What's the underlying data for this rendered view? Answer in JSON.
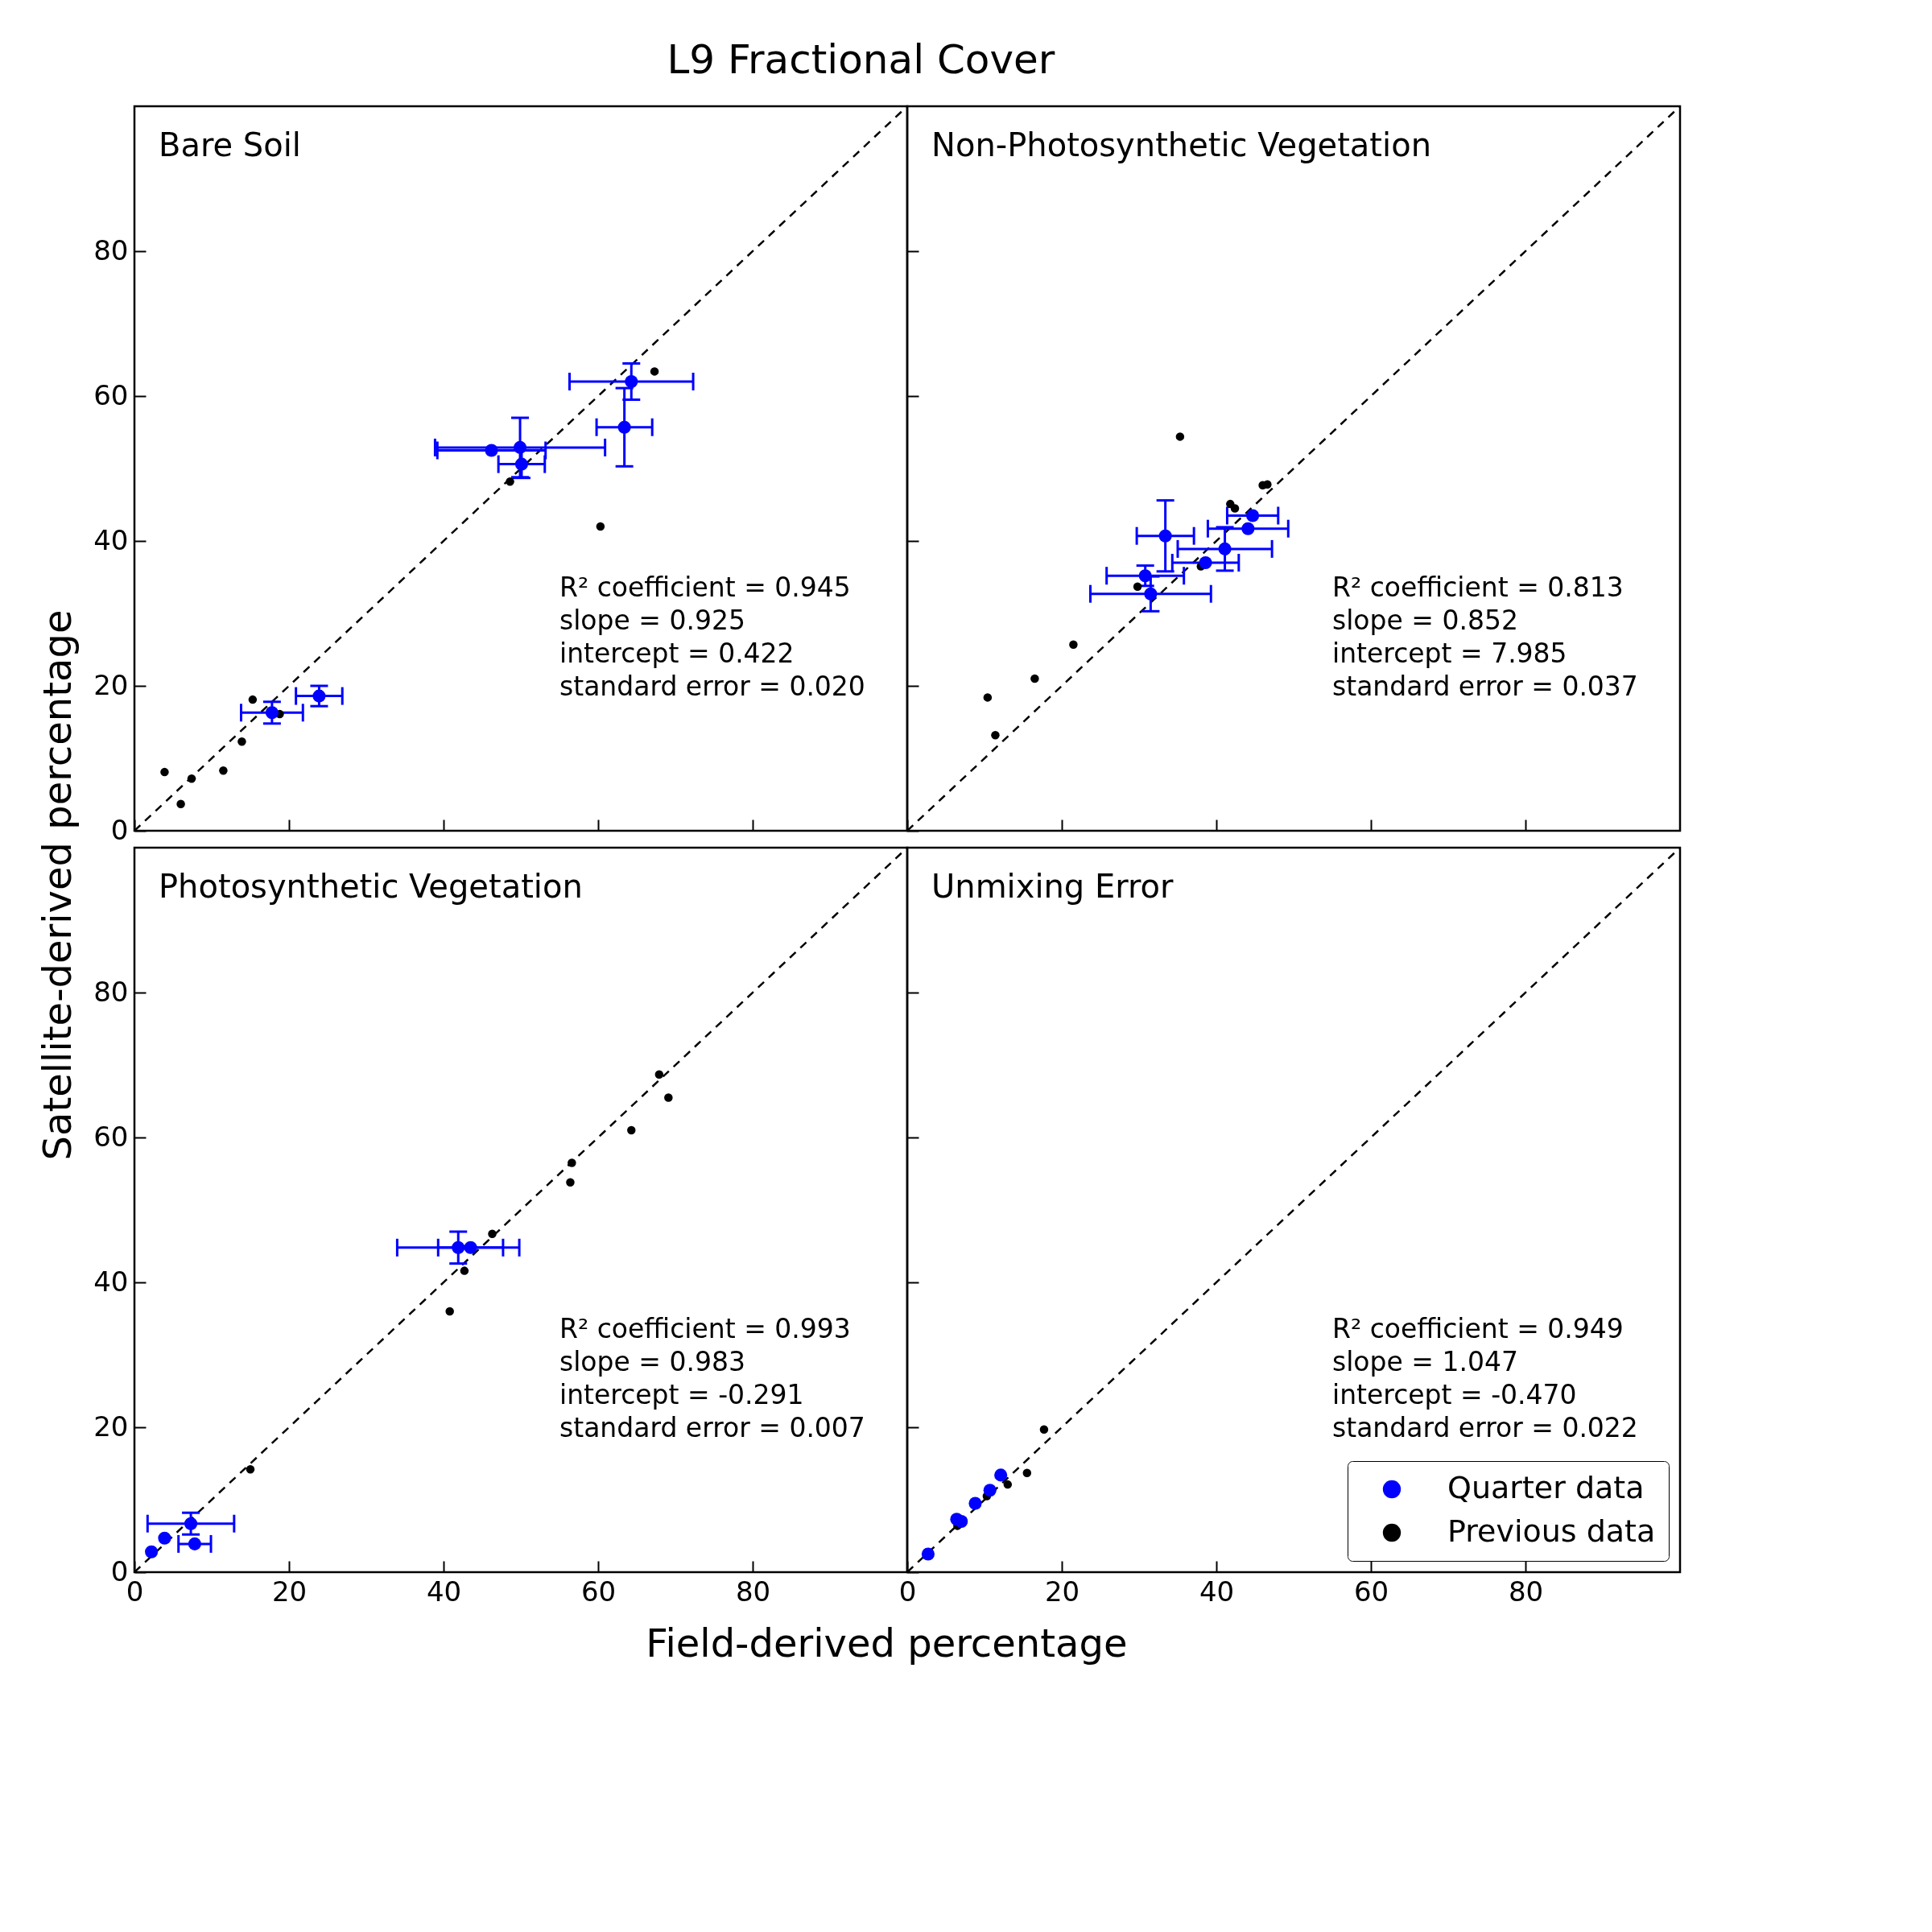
{
  "chart_data": [
    {
      "type": "scatter",
      "title": "L9 Fractional Cover",
      "ylabel": "Satellite-derived percentage",
      "xlim": [
        0,
        100
      ],
      "ylim": [
        0,
        100
      ],
      "xticks": [
        0,
        20,
        40,
        60,
        80
      ],
      "yticks": [
        0,
        20,
        40,
        60,
        80
      ],
      "tick_labels": "y",
      "grid": false,
      "annotations": [
        "Bare Soil",
        "R² coefficient = 0.945",
        "slope = 0.925",
        "intercept = 0.422",
        "standard error = 0.020"
      ],
      "series": [
        {
          "type": "line",
          "color": "#000000",
          "line_style": "dashed",
          "x": [
            0,
            100
          ],
          "values": [
            0,
            100
          ]
        },
        {
          "color": "#0000ff",
          "marker": "circle",
          "x": [
            64.3,
            63.4,
            46.2,
            49.9,
            50.1,
            23.9,
            17.8
          ],
          "values": [
            62.0,
            55.7,
            52.5,
            52.9,
            50.6,
            18.6,
            16.3
          ],
          "xerrors": [
            8,
            3.6,
            7,
            11,
            3,
            3,
            4
          ],
          "errors": [
            2.5,
            5.4,
            null,
            4.1,
            1.9,
            1.4,
            1.5
          ]
        },
        {
          "color": "#000000",
          "marker": "circle",
          "x": [
            67.3,
            48.6,
            60.3,
            15.3,
            18.8,
            13.9,
            3.9,
            7.4,
            11.5,
            6.0
          ],
          "values": [
            63.4,
            48.2,
            42.0,
            18.1,
            16.1,
            12.3,
            8.1,
            7.2,
            8.3,
            3.7
          ]
        }
      ]
    },
    {
      "type": "scatter",
      "xlim": [
        0,
        100
      ],
      "ylim": [
        0,
        100
      ],
      "xticks": [
        0,
        20,
        40,
        60,
        80
      ],
      "yticks": [
        0,
        20,
        40,
        60,
        80
      ],
      "tick_labels": false,
      "grid": false,
      "annotations": [
        "Non-Photosynthetic Vegetation",
        "R² coefficient = 0.813",
        "slope = 0.852",
        "intercept = 7.985",
        "standard error = 0.037"
      ],
      "series": [
        {
          "type": "line",
          "color": "#000000",
          "line_style": "dashed",
          "x": [
            0,
            100
          ],
          "values": [
            0,
            100
          ]
        },
        {
          "color": "#0000ff",
          "marker": "circle",
          "x": [
            33.4,
            30.8,
            31.5,
            38.6,
            41.1,
            44.1,
            44.7
          ],
          "values": [
            40.7,
            35.2,
            32.7,
            37.0,
            38.9,
            41.7,
            43.5
          ],
          "xerrors": [
            3.7,
            5,
            7.8,
            4.3,
            6.1,
            5.2,
            3.3
          ],
          "errors": [
            4.9,
            1.4,
            2.4,
            null,
            3,
            null,
            null
          ]
        },
        {
          "color": "#000000",
          "marker": "circle",
          "x": [
            35.3,
            46.0,
            46.6,
            41.8,
            42.4,
            38.0,
            29.8,
            21.5,
            16.5,
            10.4,
            11.4
          ],
          "values": [
            54.4,
            47.7,
            47.8,
            45.1,
            44.5,
            36.5,
            33.7,
            25.7,
            21.0,
            18.4,
            13.2
          ]
        }
      ]
    },
    {
      "type": "scatter",
      "xlabel": "Field-derived percentage",
      "xlim": [
        0,
        100
      ],
      "ylim": [
        0,
        100
      ],
      "xticks": [
        0,
        20,
        40,
        60,
        80
      ],
      "yticks": [
        0,
        20,
        40,
        60,
        80
      ],
      "grid": false,
      "annotations": [
        "Photosynthetic Vegetation",
        "R² coefficient = 0.993",
        "slope = 0.983",
        "intercept = -0.291",
        "standard error = 0.007"
      ],
      "series": [
        {
          "type": "line",
          "color": "#000000",
          "line_style": "dashed",
          "x": [
            0,
            100
          ],
          "values": [
            0,
            100
          ]
        },
        {
          "color": "#0000ff",
          "marker": "circle",
          "x": [
            41.9,
            43.5,
            7.3,
            7.8,
            3.9,
            2.2
          ],
          "values": [
            44.8,
            44.8,
            6.7,
            3.9,
            4.7,
            2.8
          ],
          "xerrors": [
            7.9,
            4.2,
            5.6,
            2.1,
            null,
            null
          ],
          "errors": [
            2.2,
            null,
            1.5,
            null,
            null,
            null
          ]
        },
        {
          "color": "#000000",
          "marker": "circle",
          "x": [
            46.3,
            42.7,
            40.8,
            15.0,
            56.6,
            56.4,
            64.3,
            67.9,
            69.1
          ],
          "values": [
            46.7,
            41.6,
            36.0,
            14.2,
            56.5,
            53.8,
            61.0,
            68.7,
            65.5
          ]
        }
      ]
    },
    {
      "type": "scatter",
      "xlim": [
        0,
        100
      ],
      "ylim": [
        0,
        100
      ],
      "xticks": [
        0,
        20,
        40,
        60,
        80
      ],
      "yticks": [
        0,
        20,
        40,
        60,
        80
      ],
      "tick_labels": "x",
      "grid": false,
      "legend": "bottom right",
      "annotations": [
        "Unmixing Error",
        "R² coefficient = 0.949",
        "slope = 1.047",
        "intercept = -0.470",
        "standard error = 0.022"
      ],
      "series": [
        {
          "type": "line",
          "color": "#000000",
          "line_style": "dashed",
          "x": [
            0,
            100
          ],
          "values": [
            0,
            100
          ]
        },
        {
          "name": "Quarter data",
          "color": "#0000ff",
          "marker": "circle",
          "x": [
            2.7,
            7.0,
            6.4,
            8.8,
            10.7,
            12.1
          ],
          "values": [
            2.5,
            7.0,
            7.3,
            9.5,
            11.3,
            13.4
          ]
        },
        {
          "name": "Previous data",
          "color": "#000000",
          "marker": "circle",
          "x": [
            17.7,
            15.5,
            13.0,
            10.3,
            6.5
          ],
          "values": [
            19.7,
            13.7,
            12.1,
            10.5,
            6.4
          ]
        }
      ]
    }
  ]
}
